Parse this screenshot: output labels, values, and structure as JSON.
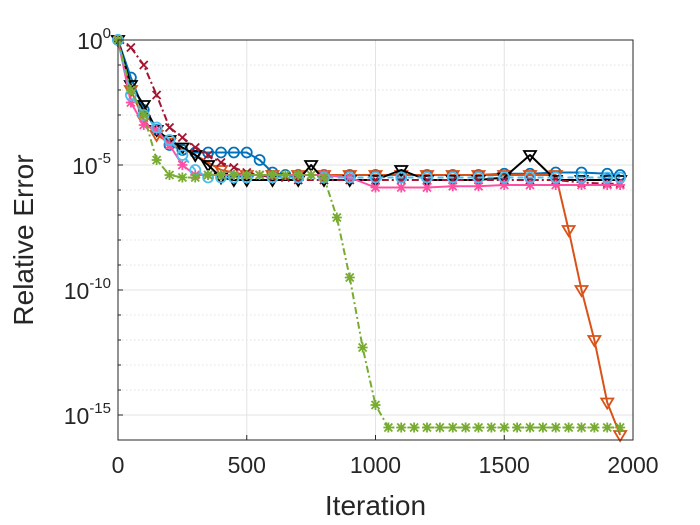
{
  "chart_data": {
    "type": "line",
    "xlabel": "Iteration",
    "ylabel": "Relative Error",
    "xlim": [
      0,
      2000
    ],
    "ylim_exponent": [
      -16,
      0
    ],
    "y_scale": "log10",
    "grid": true,
    "minor_grid": true,
    "x_ticks": [
      {
        "value": 0,
        "label": "0"
      },
      {
        "value": 500,
        "label": "500"
      },
      {
        "value": 1000,
        "label": "1000"
      },
      {
        "value": 1500,
        "label": "1500"
      },
      {
        "value": 2000,
        "label": "2000"
      }
    ],
    "y_ticks": [
      {
        "exp": 0,
        "base": "10",
        "sup": "0"
      },
      {
        "exp": -5,
        "base": "10",
        "sup": "-5"
      },
      {
        "exp": -10,
        "base": "10",
        "sup": "-10"
      },
      {
        "exp": -15,
        "base": "10",
        "sup": "-15"
      }
    ],
    "y_values_are_log10": true,
    "series": [
      {
        "color": "#0072bd",
        "linestyle": "solid",
        "marker": "circle",
        "points": [
          [
            0,
            0
          ],
          [
            50,
            -1.5
          ],
          [
            100,
            -2.8
          ],
          [
            150,
            -3.6
          ],
          [
            200,
            -4.2
          ],
          [
            250,
            -4.4
          ],
          [
            300,
            -4.5
          ],
          [
            350,
            -4.5
          ],
          [
            400,
            -4.5
          ],
          [
            450,
            -4.5
          ],
          [
            500,
            -4.5
          ],
          [
            550,
            -4.8
          ],
          [
            600,
            -5.3
          ],
          [
            650,
            -5.4
          ],
          [
            700,
            -5.4
          ],
          [
            800,
            -5.4
          ],
          [
            900,
            -5.4
          ],
          [
            1000,
            -5.4
          ],
          [
            1100,
            -5.4
          ],
          [
            1200,
            -5.4
          ],
          [
            1300,
            -5.4
          ],
          [
            1400,
            -5.4
          ],
          [
            1500,
            -5.35
          ],
          [
            1600,
            -5.35
          ],
          [
            1700,
            -5.3
          ],
          [
            1800,
            -5.3
          ],
          [
            1900,
            -5.35
          ],
          [
            1950,
            -5.4
          ]
        ]
      },
      {
        "color": "#d95319",
        "linestyle": "solid",
        "marker": "triangle-down",
        "points": [
          [
            0,
            0
          ],
          [
            50,
            -2.0
          ],
          [
            100,
            -3.2
          ],
          [
            150,
            -3.8
          ],
          [
            200,
            -4.1
          ],
          [
            300,
            -4.6
          ],
          [
            400,
            -5.2
          ],
          [
            500,
            -5.4
          ],
          [
            600,
            -5.4
          ],
          [
            700,
            -5.4
          ],
          [
            800,
            -5.4
          ],
          [
            900,
            -5.4
          ],
          [
            1000,
            -5.4
          ],
          [
            1100,
            -5.4
          ],
          [
            1200,
            -5.4
          ],
          [
            1300,
            -5.4
          ],
          [
            1400,
            -5.4
          ],
          [
            1500,
            -5.4
          ],
          [
            1600,
            -5.4
          ],
          [
            1700,
            -5.4
          ],
          [
            1750,
            -7.6
          ],
          [
            1800,
            -10.0
          ],
          [
            1850,
            -12.0
          ],
          [
            1900,
            -14.5
          ],
          [
            1950,
            -15.8
          ]
        ]
      },
      {
        "color": "#000000",
        "linestyle": "solid",
        "marker": "triangle-down",
        "points": [
          [
            0,
            0
          ],
          [
            50,
            -1.8
          ],
          [
            100,
            -2.6
          ],
          [
            150,
            -3.6
          ],
          [
            200,
            -4.0
          ],
          [
            250,
            -4.3
          ],
          [
            300,
            -4.6
          ],
          [
            350,
            -5.0
          ],
          [
            400,
            -5.5
          ],
          [
            450,
            -5.6
          ],
          [
            500,
            -5.6
          ],
          [
            600,
            -5.6
          ],
          [
            700,
            -5.6
          ],
          [
            750,
            -5.0
          ],
          [
            800,
            -5.6
          ],
          [
            900,
            -5.6
          ],
          [
            1000,
            -5.6
          ],
          [
            1100,
            -5.2
          ],
          [
            1200,
            -5.6
          ],
          [
            1300,
            -5.6
          ],
          [
            1400,
            -5.6
          ],
          [
            1500,
            -5.5
          ],
          [
            1600,
            -4.6
          ],
          [
            1700,
            -5.6
          ],
          [
            1800,
            -5.6
          ],
          [
            1900,
            -5.6
          ],
          [
            1950,
            -5.6
          ]
        ]
      },
      {
        "color": "#a2142f",
        "linestyle": "dashdot",
        "marker": "x",
        "points": [
          [
            0,
            0
          ],
          [
            50,
            -0.3
          ],
          [
            100,
            -1.0
          ],
          [
            150,
            -2.2
          ],
          [
            200,
            -3.5
          ],
          [
            250,
            -3.9
          ],
          [
            300,
            -4.3
          ],
          [
            350,
            -4.6
          ],
          [
            400,
            -4.9
          ],
          [
            450,
            -5.1
          ],
          [
            500,
            -5.3
          ],
          [
            550,
            -5.4
          ],
          [
            600,
            -5.5
          ],
          [
            650,
            -5.5
          ],
          [
            700,
            -5.6
          ],
          [
            800,
            -5.6
          ],
          [
            900,
            -5.6
          ],
          [
            1000,
            -5.6
          ],
          [
            1100,
            -5.6
          ],
          [
            1200,
            -5.6
          ],
          [
            1300,
            -5.6
          ],
          [
            1400,
            -5.6
          ],
          [
            1500,
            -5.6
          ],
          [
            1600,
            -5.6
          ],
          [
            1700,
            -5.6
          ],
          [
            1800,
            -5.7
          ],
          [
            1900,
            -5.75
          ],
          [
            1950,
            -5.75
          ]
        ]
      },
      {
        "color": "#ff4fa3",
        "linestyle": "solid",
        "marker": "asterisk",
        "points": [
          [
            0,
            0
          ],
          [
            50,
            -2.5
          ],
          [
            100,
            -3.4
          ],
          [
            150,
            -3.6
          ],
          [
            200,
            -4.2
          ],
          [
            250,
            -5.0
          ],
          [
            300,
            -5.4
          ],
          [
            350,
            -5.4
          ],
          [
            400,
            -5.4
          ],
          [
            450,
            -5.4
          ],
          [
            500,
            -5.4
          ],
          [
            550,
            -5.4
          ],
          [
            600,
            -5.4
          ],
          [
            700,
            -5.4
          ],
          [
            800,
            -5.4
          ],
          [
            900,
            -5.5
          ],
          [
            1000,
            -5.9
          ],
          [
            1100,
            -5.9
          ],
          [
            1200,
            -5.9
          ],
          [
            1300,
            -5.85
          ],
          [
            1400,
            -5.85
          ],
          [
            1500,
            -5.8
          ],
          [
            1600,
            -5.8
          ],
          [
            1700,
            -5.8
          ],
          [
            1800,
            -5.8
          ],
          [
            1900,
            -5.8
          ],
          [
            1950,
            -5.8
          ]
        ]
      },
      {
        "color": "#4dbeee",
        "linestyle": "dashed",
        "marker": "circle",
        "points": [
          [
            0,
            0
          ],
          [
            50,
            -2.2
          ],
          [
            100,
            -3.0
          ],
          [
            150,
            -3.5
          ],
          [
            200,
            -4.0
          ],
          [
            250,
            -4.6
          ],
          [
            300,
            -5.2
          ],
          [
            350,
            -5.5
          ],
          [
            400,
            -5.5
          ],
          [
            450,
            -5.5
          ],
          [
            500,
            -5.5
          ],
          [
            600,
            -5.5
          ],
          [
            700,
            -5.5
          ],
          [
            800,
            -5.5
          ],
          [
            900,
            -5.5
          ],
          [
            1000,
            -5.5
          ],
          [
            1100,
            -5.5
          ],
          [
            1200,
            -5.5
          ],
          [
            1300,
            -5.5
          ],
          [
            1400,
            -5.5
          ],
          [
            1500,
            -5.5
          ],
          [
            1600,
            -5.5
          ],
          [
            1700,
            -5.5
          ],
          [
            1800,
            -5.5
          ],
          [
            1900,
            -5.5
          ],
          [
            1950,
            -5.5
          ]
        ]
      },
      {
        "color": "#77ac30",
        "linestyle": "dashdot",
        "marker": "asterisk",
        "points": [
          [
            0,
            0
          ],
          [
            50,
            -2.0
          ],
          [
            100,
            -3.0
          ],
          [
            150,
            -4.8
          ],
          [
            200,
            -5.4
          ],
          [
            250,
            -5.5
          ],
          [
            300,
            -5.5
          ],
          [
            350,
            -5.4
          ],
          [
            400,
            -5.4
          ],
          [
            450,
            -5.4
          ],
          [
            500,
            -5.4
          ],
          [
            550,
            -5.4
          ],
          [
            600,
            -5.4
          ],
          [
            650,
            -5.4
          ],
          [
            700,
            -5.4
          ],
          [
            750,
            -5.4
          ],
          [
            800,
            -5.5
          ],
          [
            850,
            -7.1
          ],
          [
            900,
            -9.5
          ],
          [
            950,
            -12.3
          ],
          [
            1000,
            -14.6
          ],
          [
            1050,
            -15.5
          ],
          [
            1100,
            -15.5
          ],
          [
            1150,
            -15.5
          ],
          [
            1200,
            -15.5
          ],
          [
            1250,
            -15.5
          ],
          [
            1300,
            -15.5
          ],
          [
            1350,
            -15.5
          ],
          [
            1400,
            -15.5
          ],
          [
            1450,
            -15.5
          ],
          [
            1500,
            -15.5
          ],
          [
            1550,
            -15.5
          ],
          [
            1600,
            -15.5
          ],
          [
            1650,
            -15.5
          ],
          [
            1700,
            -15.5
          ],
          [
            1750,
            -15.5
          ],
          [
            1800,
            -15.5
          ],
          [
            1850,
            -15.5
          ],
          [
            1900,
            -15.5
          ],
          [
            1950,
            -15.5
          ]
        ]
      }
    ]
  }
}
